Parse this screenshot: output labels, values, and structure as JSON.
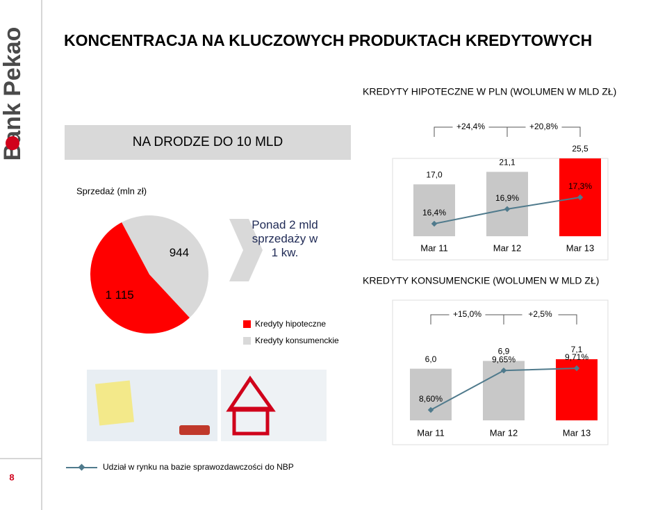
{
  "header": {
    "title": "KONCENTRACJA NA KLUCZOWYCH PRODUKTACH KREDYTOWYCH",
    "logo": "Bank Pekao"
  },
  "banner": "NA DRODZE DO 10 MLD",
  "callout": "Ponad 2 mld sprzedaży w 1 kw.",
  "page_number": "8",
  "footnote": "Udział w rynku na bazie sprawozdawczości do NBP",
  "chart_data": [
    {
      "type": "pie",
      "title": "Sprzedaż (mln zł)",
      "categories": [
        "Kredyty hipoteczne",
        "Kredyty konsumenckie"
      ],
      "values": [
        1115,
        944
      ],
      "value_labels": [
        "1 115",
        "944"
      ],
      "colors": [
        "#ff0000",
        "#d9d9d9"
      ]
    },
    {
      "type": "bar",
      "title": "KREDYTY HIPOTECZNE W PLN (WOLUMEN W MLD ZŁ)",
      "categories": [
        "Mar 11",
        "Mar 12",
        "Mar 13"
      ],
      "growth_labels": [
        "+24,4%",
        "+20,8%"
      ],
      "series": [
        {
          "type": "bar",
          "values": [
            17.0,
            21.1,
            25.5
          ],
          "value_labels": [
            "17,0",
            "21,1",
            "25,5"
          ],
          "colors": [
            "#c8c8c8",
            "#c8c8c8",
            "#ff0000"
          ]
        },
        {
          "type": "line",
          "axis": "y2",
          "color": "#4f7a8c",
          "values": [
            16.4,
            16.9,
            17.3
          ],
          "value_labels": [
            "16,4%",
            "16,9%",
            "17,3%"
          ]
        }
      ]
    },
    {
      "type": "bar",
      "title": "KREDYTY KONSUMENCKIE (WOLUMEN W MLD ZŁ)",
      "categories": [
        "Mar 11",
        "Mar 12",
        "Mar 13"
      ],
      "growth_labels": [
        "+15,0%",
        "+2,5%"
      ],
      "series": [
        {
          "type": "bar",
          "values": [
            6.0,
            6.9,
            7.1
          ],
          "value_labels": [
            "6,0",
            "6,9",
            "7,1"
          ],
          "colors": [
            "#c8c8c8",
            "#c8c8c8",
            "#ff0000"
          ]
        },
        {
          "type": "line",
          "axis": "y2",
          "color": "#4f7a8c",
          "values": [
            8.6,
            9.65,
            9.71
          ],
          "value_labels": [
            "8,60%",
            "9,65%",
            "9,71%"
          ]
        }
      ]
    }
  ]
}
